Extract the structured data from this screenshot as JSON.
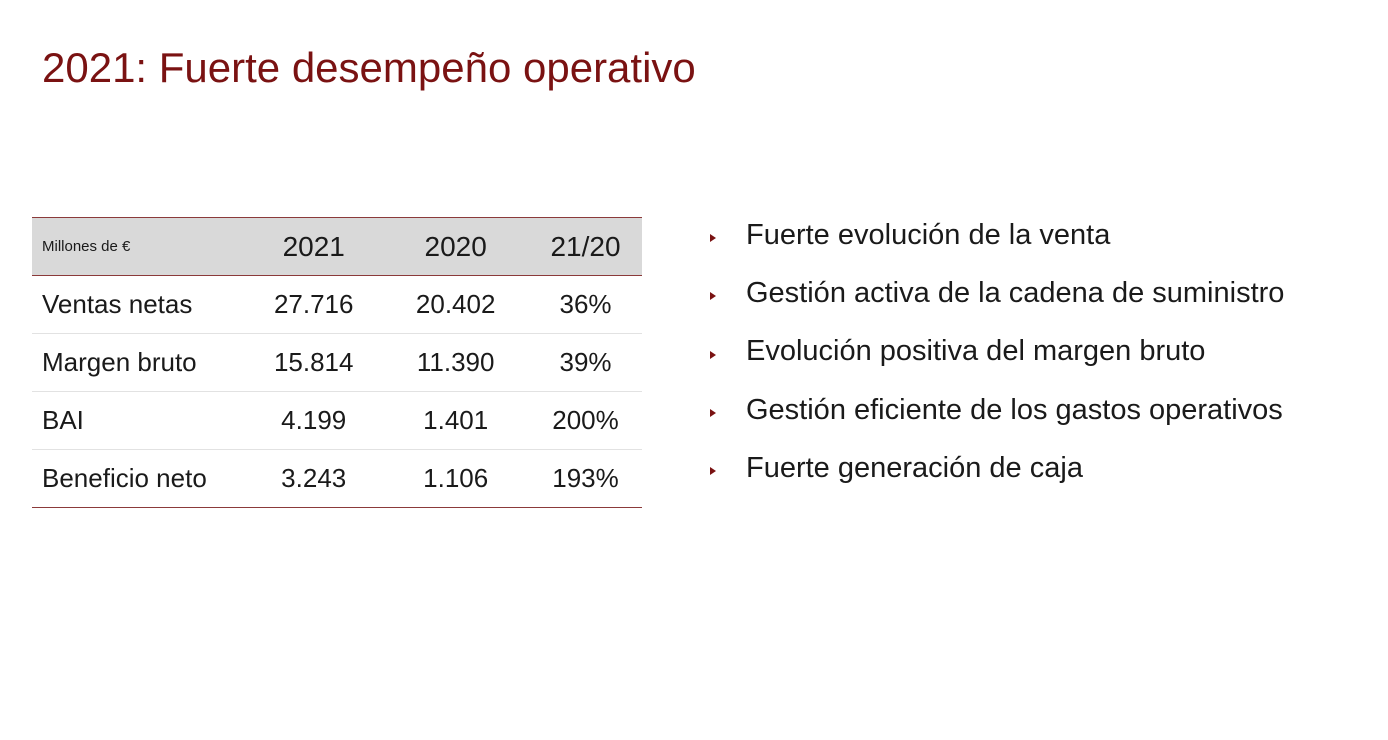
{
  "title": "2021: Fuerte desempeño operativo",
  "colors": {
    "title": "#7a1212",
    "rule": "#8b3a3a",
    "header_bg": "#d9d9d9",
    "bullet": "#7a1212"
  },
  "table": {
    "unit_label": "Millones de €",
    "columns": [
      "2021",
      "2020",
      "21/20"
    ],
    "rows": [
      {
        "label": "Ventas netas",
        "v2021": "27.716",
        "v2020": "20.402",
        "change": "36%"
      },
      {
        "label": "Margen bruto",
        "v2021": "15.814",
        "v2020": "11.390",
        "change": "39%"
      },
      {
        "label": "BAI",
        "v2021": "4.199",
        "v2020": "1.401",
        "change": "200%"
      },
      {
        "label": "Beneficio neto",
        "v2021": "3.243",
        "v2020": "1.106",
        "change": "193%"
      }
    ]
  },
  "highlights": {
    "bullet_icon": "triangle-bullet-icon",
    "items": [
      "Fuerte evolución de la venta",
      "Gestión activa de la cadena de suministro",
      "Evolución positiva del margen bruto",
      "Gestión eficiente de los gastos operativos",
      "Fuerte generación de caja"
    ]
  }
}
